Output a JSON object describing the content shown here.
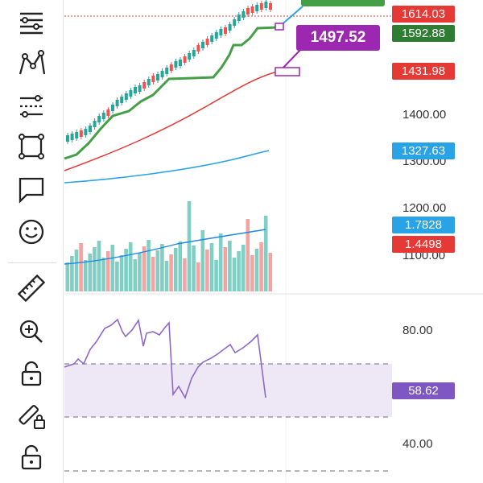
{
  "toolbar": {
    "items": [
      {
        "name": "menu-lines-icon",
        "label": "Menu"
      },
      {
        "name": "pattern-icon",
        "label": "Patterns"
      },
      {
        "name": "fib-icon",
        "label": "Fibonacci"
      },
      {
        "name": "shape-icon",
        "label": "Shapes"
      },
      {
        "name": "note-icon",
        "label": "Annotation"
      },
      {
        "name": "emoji-icon",
        "label": "Emoji"
      },
      {
        "name": "ruler-icon",
        "label": "Measure"
      },
      {
        "name": "zoom-icon",
        "label": "Zoom"
      },
      {
        "name": "lock-icon",
        "label": "Lock"
      },
      {
        "name": "magic-pen-icon",
        "label": "Lock drawing"
      },
      {
        "name": "lock-2-icon",
        "label": "Lock all"
      }
    ]
  },
  "price_scale": {
    "labels": [
      "1400.00",
      "1300.00",
      "1200.00",
      "1100.00"
    ]
  },
  "price_tags": [
    {
      "value": "1614.03",
      "color": "#e53935"
    },
    {
      "value": "1592.88",
      "color": "#2e7d32"
    },
    {
      "value": "1431.98",
      "color": "#e53935"
    },
    {
      "value": "1327.63",
      "color": "#29a3e6"
    },
    {
      "value": "1.7828",
      "color": "#29a3e6"
    },
    {
      "value": "1.4498",
      "color": "#e53935"
    }
  ],
  "callout": {
    "value": "1497.52",
    "color": "#9c27b0"
  },
  "rsi": {
    "labels": [
      "80.00",
      "40.00"
    ],
    "current": "58.62",
    "current_color": "#7e57c2",
    "band_color": "#ede7f6"
  },
  "colors": {
    "up": "#26a69a",
    "down": "#ef5350",
    "volume_up": "#7fcfc4",
    "volume_down": "#f4a3a3",
    "sma_green": "#43a047",
    "ma_red": "#e53935",
    "ma_blue": "#29a3e6",
    "rsi_line": "#8e68c8"
  }
}
